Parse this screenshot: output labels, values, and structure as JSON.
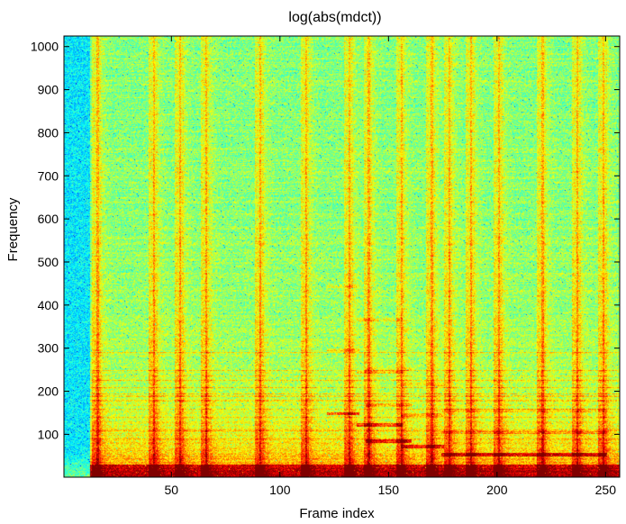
{
  "chart_data": {
    "type": "heatmap",
    "title": "log(abs(mdct))",
    "xlabel": "Frame index",
    "ylabel": "Frequency",
    "xlim": [
      1,
      256
    ],
    "ylim": [
      1,
      1024
    ],
    "xticks": [
      50,
      100,
      150,
      200,
      250
    ],
    "yticks": [
      100,
      200,
      300,
      400,
      500,
      600,
      700,
      800,
      900,
      1000
    ],
    "colormap": "jet",
    "grid": false,
    "legend": "none",
    "bright_frames": [
      16,
      42,
      54,
      66,
      91,
      112,
      132,
      141,
      156,
      170,
      178,
      188,
      201,
      221,
      237,
      249
    ],
    "onset_frame": 12,
    "harmonic_segments": [
      {
        "x0": 122,
        "x1": 136,
        "y": 148
      },
      {
        "x0": 136,
        "x1": 156,
        "y": 122
      },
      {
        "x0": 140,
        "x1": 160,
        "y": 84
      },
      {
        "x0": 156,
        "x1": 175,
        "y": 72
      },
      {
        "x0": 175,
        "x1": 250,
        "y": 52
      }
    ],
    "colors": {
      "low": "#00007f",
      "mid": "#7fff7f",
      "high": "#7f0000"
    }
  }
}
